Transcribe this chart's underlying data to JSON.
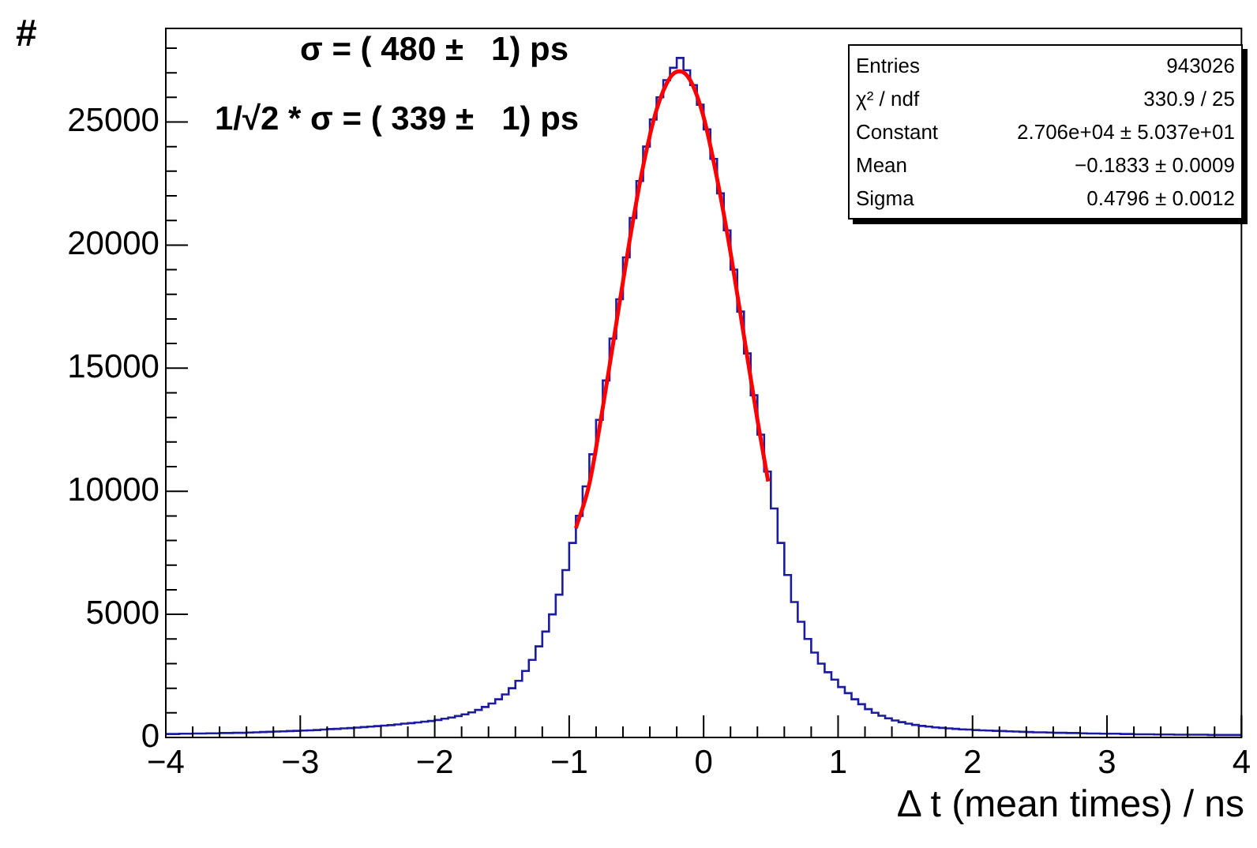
{
  "chart_data": {
    "type": "histogram",
    "xlabel": "Δ t (mean times) / ns",
    "ylabel": "#",
    "bins": [
      -4,
      -3.95,
      -3.9,
      -3.85,
      -3.8,
      -3.75,
      -3.7,
      -3.65,
      -3.6,
      -3.55,
      -3.5,
      -3.45,
      -3.4,
      -3.35,
      -3.3,
      -3.25,
      -3.2,
      -3.15,
      -3.1,
      -3.05,
      -3,
      -2.95,
      -2.9,
      -2.85,
      -2.8,
      -2.75,
      -2.7,
      -2.65,
      -2.6,
      -2.55,
      -2.5,
      -2.45,
      -2.4,
      -2.35,
      -2.3,
      -2.25,
      -2.2,
      -2.15,
      -2.1,
      -2.05,
      -2,
      -1.95,
      -1.9,
      -1.85,
      -1.8,
      -1.75,
      -1.7,
      -1.65,
      -1.6,
      -1.55,
      -1.5,
      -1.45,
      -1.4,
      -1.35,
      -1.3,
      -1.25,
      -1.2,
      -1.15,
      -1.1,
      -1.05,
      -1,
      -0.95,
      -0.9,
      -0.85,
      -0.8,
      -0.75,
      -0.7,
      -0.65,
      -0.6,
      -0.55,
      -0.5,
      -0.45,
      -0.4,
      -0.35,
      -0.3,
      -0.25,
      -0.2,
      -0.15,
      -0.1,
      -0.05,
      0,
      0.05,
      0.1,
      0.15,
      0.2,
      0.25,
      0.3,
      0.35,
      0.4,
      0.45,
      0.5,
      0.55,
      0.6,
      0.65,
      0.7,
      0.75,
      0.8,
      0.85,
      0.9,
      0.95,
      1,
      1.05,
      1.1,
      1.15,
      1.2,
      1.25,
      1.3,
      1.35,
      1.4,
      1.45,
      1.5,
      1.55,
      1.6,
      1.65,
      1.7,
      1.75,
      1.8,
      1.85,
      1.9,
      1.95,
      2,
      2.05,
      2.1,
      2.15,
      2.2,
      2.25,
      2.3,
      2.35,
      2.4,
      2.45,
      2.5,
      2.55,
      2.6,
      2.65,
      2.7,
      2.75,
      2.8,
      2.85,
      2.9,
      2.95,
      3,
      3.05,
      3.1,
      3.15,
      3.2,
      3.25,
      3.3,
      3.35,
      3.4,
      3.45,
      3.5,
      3.55,
      3.6,
      3.65,
      3.7,
      3.75,
      3.8,
      3.85,
      3.9,
      3.95,
      4
    ],
    "series": [
      {
        "color": "#1c1ca0",
        "values": [
          140,
          140,
          150,
          150,
          160,
          160,
          170,
          170,
          180,
          180,
          190,
          190,
          200,
          210,
          220,
          230,
          240,
          250,
          260,
          270,
          280,
          290,
          300,
          320,
          340,
          350,
          370,
          380,
          400,
          420,
          440,
          460,
          480,
          500,
          530,
          560,
          580,
          610,
          640,
          670,
          710,
          760,
          810,
          870,
          940,
          1020,
          1120,
          1240,
          1380,
          1550,
          1750,
          2000,
          2300,
          2700,
          3150,
          3700,
          4300,
          5000,
          5800,
          6800,
          7900,
          9000,
          10200,
          11500,
          12900,
          14500,
          16200,
          17800,
          19500,
          21100,
          22600,
          24000,
          25100,
          26000,
          26700,
          27200,
          27600,
          27100,
          26500,
          25700,
          24700,
          23500,
          22100,
          20600,
          19000,
          17300,
          15600,
          13900,
          12300,
          10800,
          9300,
          7900,
          6600,
          5500,
          4700,
          4000,
          3450,
          3000,
          2650,
          2350,
          2050,
          1800,
          1550,
          1350,
          1150,
          1000,
          880,
          780,
          690,
          620,
          560,
          510,
          470,
          440,
          410,
          390,
          370,
          350,
          330,
          320,
          300,
          290,
          280,
          270,
          260,
          250,
          240,
          230,
          220,
          210,
          210,
          200,
          190,
          190,
          180,
          180,
          170,
          160,
          160,
          150,
          150,
          150,
          140,
          140,
          130,
          130,
          130,
          120,
          120,
          120,
          110,
          110,
          110,
          110,
          110,
          100,
          100,
          100,
          100,
          100
        ]
      },
      {
        "type": "line",
        "color": "#ff0000",
        "x": [
          -0.95,
          -0.85,
          -0.75,
          -0.65,
          -0.55,
          -0.45,
          -0.35,
          -0.25,
          -0.18,
          -0.1,
          0,
          0.1,
          0.2,
          0.3,
          0.4,
          0.48
        ],
        "values": [
          8500,
          10300,
          13400,
          16800,
          20200,
          23200,
          25500,
          26800,
          27060,
          26700,
          25200,
          22700,
          19700,
          16300,
          12900,
          10400
        ]
      }
    ],
    "xlim": [
      -4,
      4
    ],
    "xticks": [
      -4,
      -3,
      -2,
      -1,
      0,
      1,
      2,
      3,
      4
    ],
    "ylim": [
      0,
      28800
    ],
    "yticks": [
      0,
      5000,
      10000,
      15000,
      20000,
      25000
    ],
    "grid": false,
    "legend": false,
    "annotations": [
      "σ = ( 480 ±   1) ps",
      "1/√2 * σ = ( 339 ±   1) ps",
      "Entries\t943026",
      "χ² / ndf\t330.9 / 25",
      "Constant\t2.706e+04 ± 5.037e+01",
      "Mean\t−0.1833 ± 0.0009",
      "Sigma\t0.4796 ± 0.0012"
    ]
  }
}
